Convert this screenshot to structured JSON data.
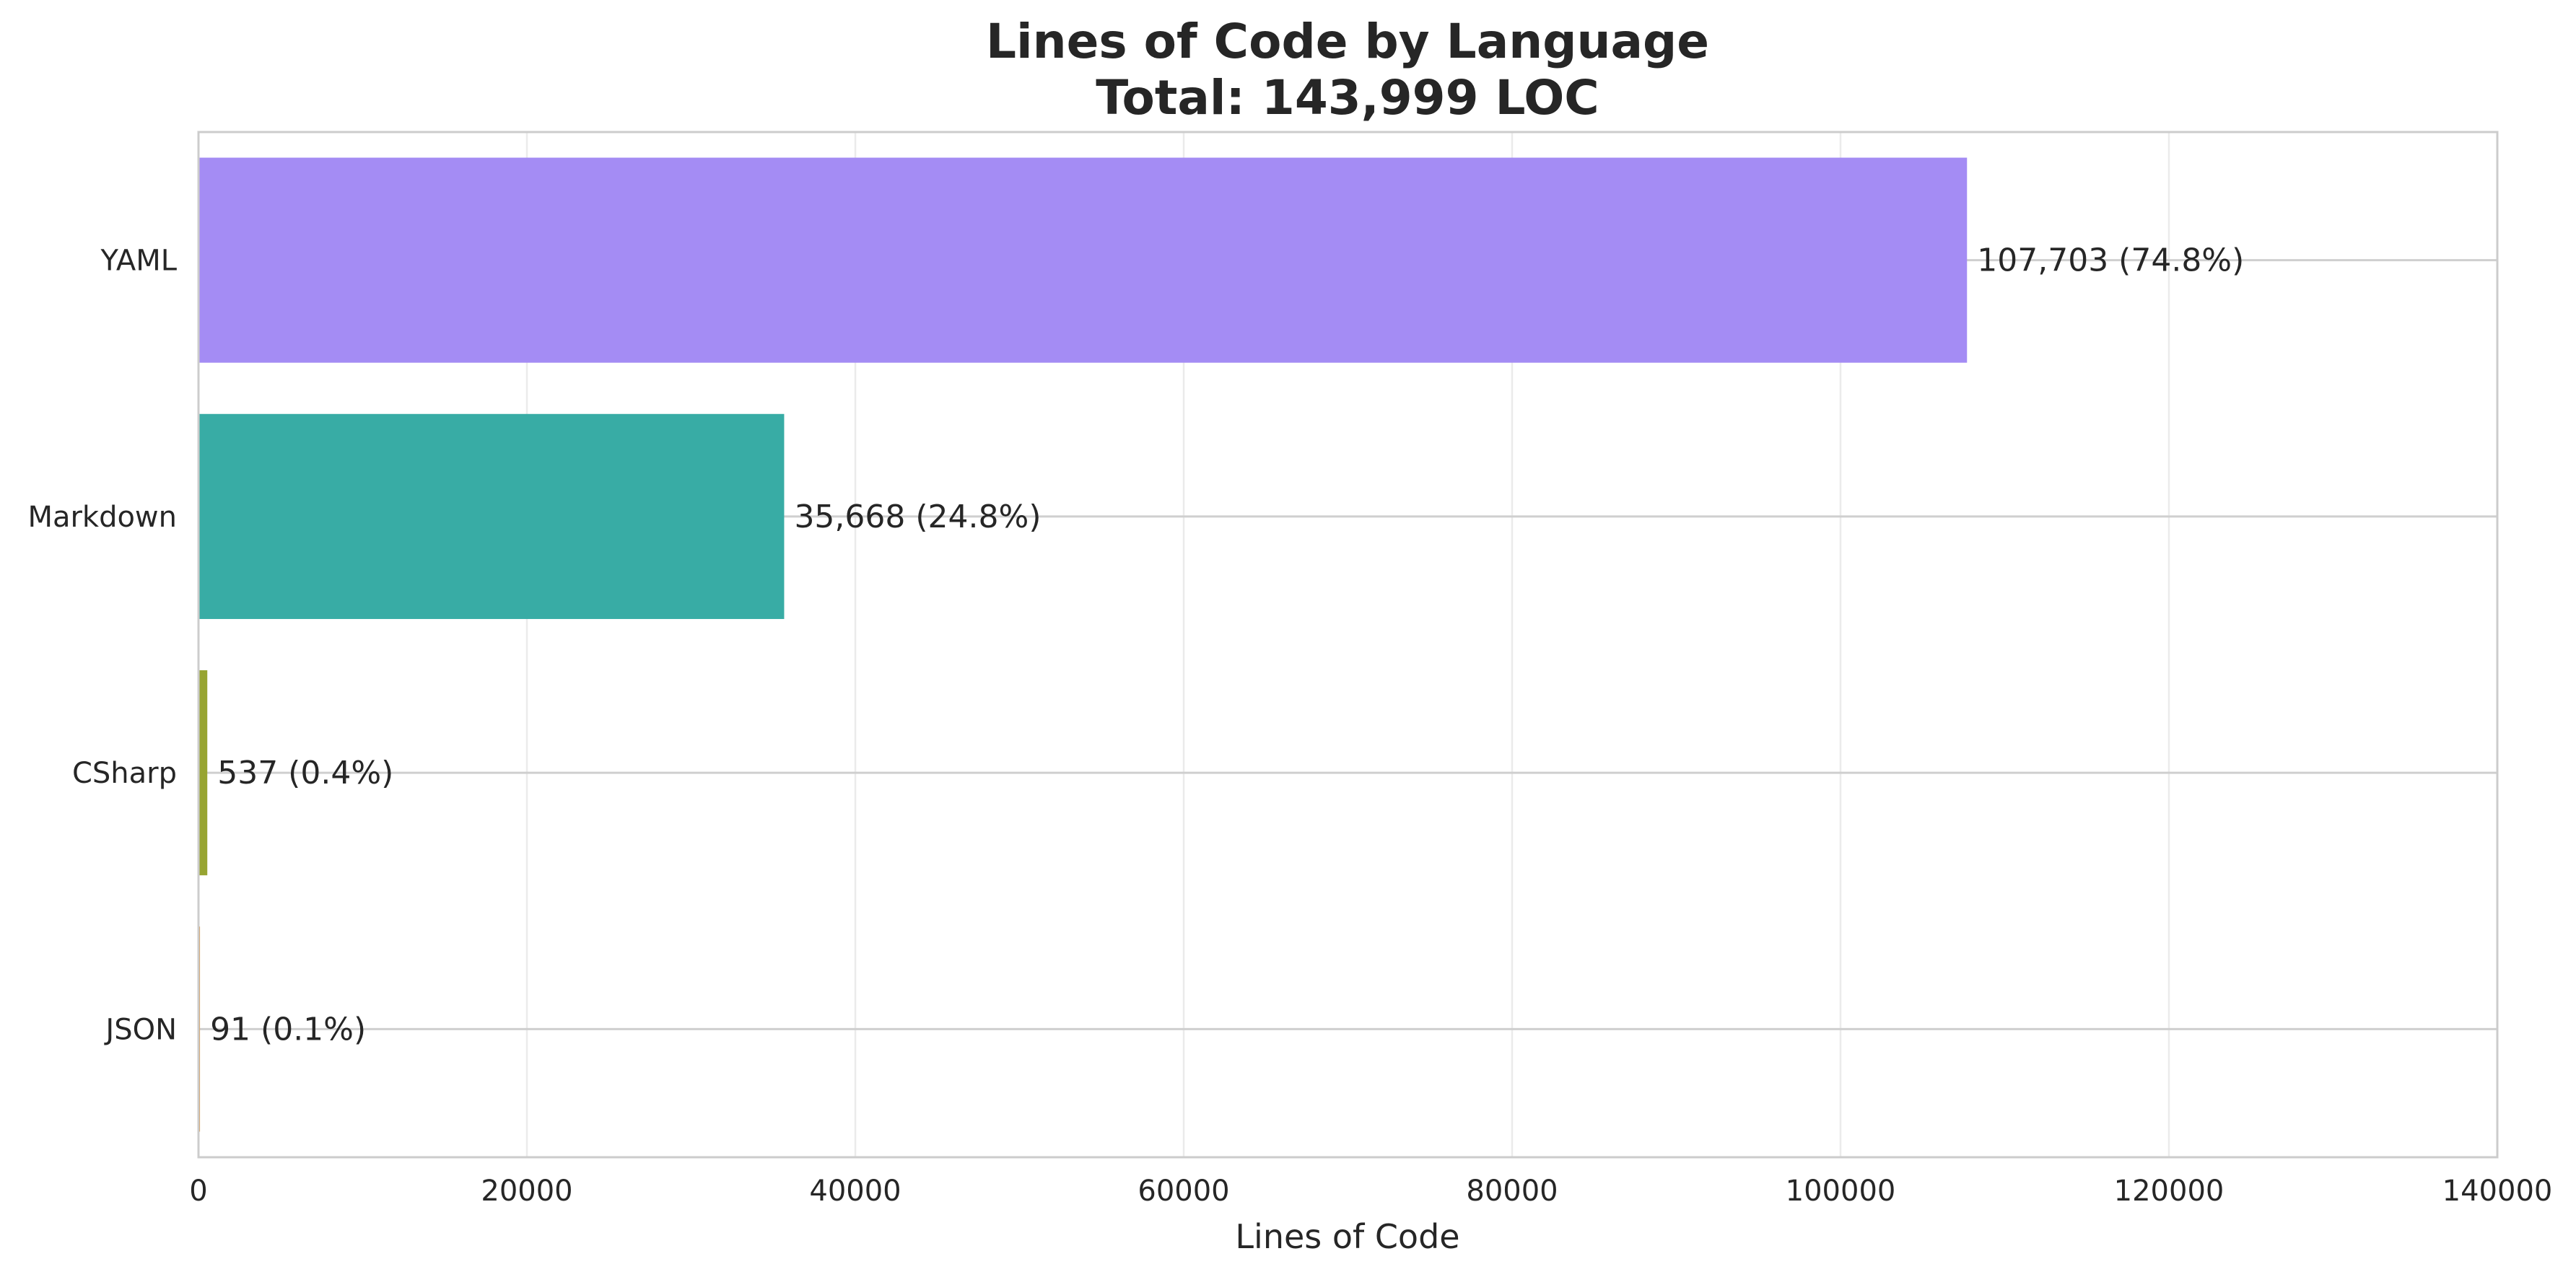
{
  "chart_data": {
    "type": "bar",
    "orientation": "horizontal",
    "title": "Lines of Code by Language",
    "subtitle": "Total: 143,999 LOC",
    "xlabel": "Lines of Code",
    "ylabel": "",
    "xlim": [
      0,
      140000
    ],
    "xticks": [
      0,
      20000,
      40000,
      60000,
      80000,
      100000,
      120000,
      140000
    ],
    "xtick_labels": [
      "0",
      "20000",
      "40000",
      "60000",
      "80000",
      "100000",
      "120000",
      "140000"
    ],
    "categories": [
      "YAML",
      "Markdown",
      "CSharp",
      "JSON"
    ],
    "values": [
      107703,
      35668,
      537,
      91
    ],
    "value_labels": [
      "107,703 (74.8%)",
      "35,668 (24.8%)",
      "537 (0.4%)",
      "91 (0.1%)"
    ],
    "colors": [
      "#a48cf4",
      "#38aca5",
      "#97a431",
      "#d98c2f"
    ],
    "grid": true,
    "legend": "none"
  }
}
